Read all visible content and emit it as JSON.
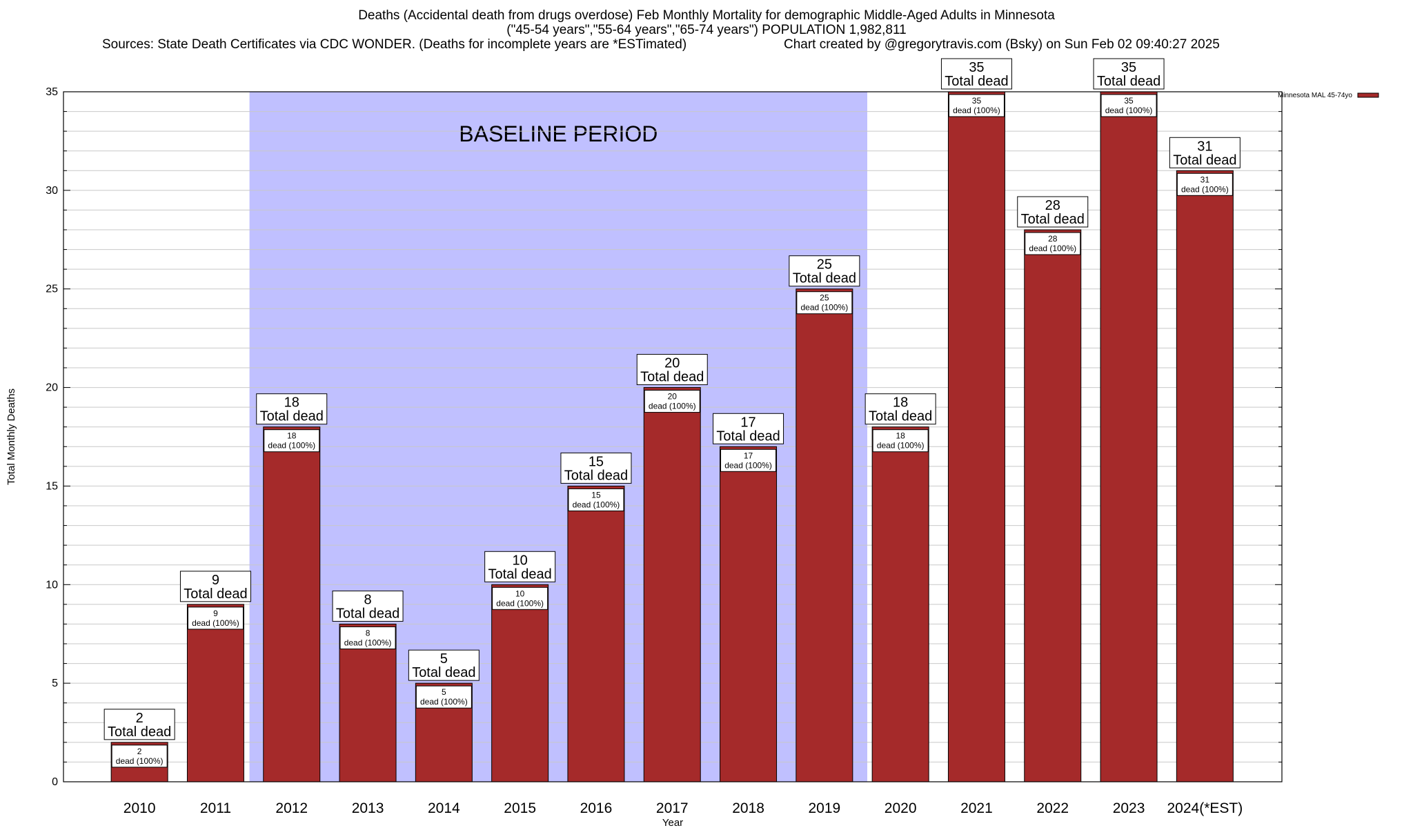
{
  "header": {
    "title_line1": "Deaths (Accidental death from drugs overdose) Feb Monthly Mortality for demographic Middle-Aged Adults in Minnesota",
    "title_line2": "(\"45-54 years\",\"55-64 years\",\"65-74 years\") POPULATION 1,982,811",
    "sources": "Sources: State Death Certificates via CDC WONDER. (Deaths for incomplete years are *ESTimated)",
    "credit": "Chart created by @gregorytravis.com (Bsky) on Sun Feb 02 09:40:27 2025"
  },
  "chart_data": {
    "type": "bar",
    "title": "Deaths (Accidental death from drugs overdose) Feb Monthly Mortality for demographic Middle-Aged Adults in Minnesota",
    "xlabel": "Year",
    "ylabel": "Total Monthly Deaths",
    "ylim": [
      0,
      35
    ],
    "yticks": [
      0,
      5,
      10,
      15,
      20,
      25,
      30,
      35
    ],
    "grid": true,
    "categories": [
      "2010",
      "2011",
      "2012",
      "2013",
      "2014",
      "2015",
      "2016",
      "2017",
      "2018",
      "2019",
      "2020",
      "2021",
      "2022",
      "2023",
      "2024(*EST)"
    ],
    "series": [
      {
        "name": "Minnesota MAL 45-74yo",
        "color": "#a52a2a",
        "values": [
          2,
          9,
          18,
          8,
          5,
          10,
          15,
          20,
          17,
          25,
          18,
          35,
          28,
          35,
          31
        ]
      }
    ],
    "total_label_suffix": "Total dead",
    "inner_label_suffix": "dead (100%)",
    "baseline": {
      "label": "BASELINE PERIOD",
      "from": "2012",
      "to": "2019",
      "color": "#c0c0ff"
    },
    "legend": {
      "position": "top-right"
    }
  }
}
